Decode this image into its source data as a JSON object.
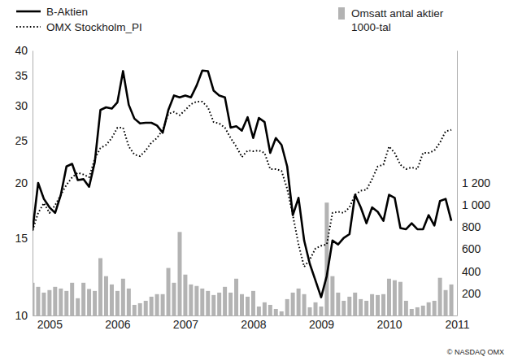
{
  "chart_data": {
    "type": "line",
    "log": "y",
    "x": [
      2004.75,
      2004.833,
      2004.917,
      2005,
      2005.083,
      2005.167,
      2005.25,
      2005.333,
      2005.417,
      2005.5,
      2005.583,
      2005.667,
      2005.75,
      2005.833,
      2005.917,
      2006,
      2006.083,
      2006.167,
      2006.25,
      2006.333,
      2006.417,
      2006.5,
      2006.583,
      2006.667,
      2006.75,
      2006.833,
      2006.917,
      2007,
      2007.083,
      2007.167,
      2007.25,
      2007.333,
      2007.417,
      2007.5,
      2007.583,
      2007.667,
      2007.75,
      2007.833,
      2007.917,
      2008,
      2008.083,
      2008.167,
      2008.25,
      2008.333,
      2008.417,
      2008.5,
      2008.583,
      2008.667,
      2008.75,
      2008.833,
      2008.917,
      2009,
      2009.083,
      2009.167,
      2009.25,
      2009.333,
      2009.417,
      2009.5,
      2009.583,
      2009.667,
      2009.75,
      2009.833,
      2009.917,
      2010,
      2010.083,
      2010.167,
      2010.25,
      2010.333,
      2010.417,
      2010.5,
      2010.583,
      2010.667,
      2010.75,
      2010.833,
      2010.917
    ],
    "xlim": [
      2004.75,
      2011
    ],
    "xticks": [
      2005,
      2006,
      2007,
      2008,
      2009,
      2010,
      2011
    ],
    "ylim": [
      10,
      40
    ],
    "yticks": [
      10,
      15,
      20,
      25,
      30,
      35,
      40
    ],
    "y2lim": [
      0,
      2400
    ],
    "y2ticks": [
      200,
      400,
      600,
      800,
      {
        "value": 1000,
        "label": "1 000"
      },
      {
        "value": 1200,
        "label": "1 200"
      }
    ],
    "series": [
      {
        "name": "B-Aktien",
        "type": "line",
        "color": "#000000",
        "line_style": "solid",
        "values": [
          15.6,
          20.0,
          18.4,
          17.6,
          17.1,
          18.8,
          21.8,
          22.1,
          20.3,
          20.4,
          19.6,
          22.3,
          29.3,
          29.7,
          29.5,
          30.5,
          35.9,
          30.1,
          28.0,
          27.3,
          27.4,
          27.4,
          27.0,
          26.0,
          29.3,
          31.6,
          31.3,
          31.6,
          31.3,
          33.3,
          36.0,
          35.9,
          32.4,
          31.6,
          31.3,
          26.7,
          26.9,
          26.3,
          28.2,
          25.3,
          28.1,
          27.5,
          23.4,
          25.3,
          24.4,
          21.8,
          16.9,
          18.5,
          14.8,
          13.1,
          12.0,
          11.0,
          12.3,
          14.8,
          14.5,
          15.0,
          15.3,
          18.8,
          17.6,
          16.2,
          17.6,
          17.2,
          16.4,
          18.8,
          18.5,
          15.8,
          15.7,
          16.2,
          15.7,
          15.7,
          16.9,
          16.0,
          18.2,
          18.4,
          16.4
        ]
      },
      {
        "name": "OMX Stockholm_PI",
        "type": "line",
        "color": "#000000",
        "line_style": "dotted",
        "values": [
          15.6,
          17.1,
          18.0,
          17.1,
          17.8,
          18.8,
          19.8,
          20.6,
          21.1,
          20.9,
          20.6,
          22.7,
          24.0,
          24.4,
          25.3,
          26.7,
          26.7,
          24.2,
          23.2,
          23.0,
          23.7,
          24.7,
          25.3,
          26.4,
          28.7,
          29.0,
          28.5,
          29.3,
          30.2,
          30.6,
          30.6,
          29.7,
          27.5,
          27.3,
          26.7,
          25.3,
          24.2,
          22.9,
          23.7,
          23.6,
          23.7,
          23.4,
          21.5,
          21.5,
          21.3,
          19.4,
          16.9,
          14.5,
          12.9,
          13.4,
          14.2,
          14.4,
          14.5,
          17.1,
          17.2,
          17.1,
          17.6,
          18.8,
          19.2,
          19.3,
          20.4,
          21.8,
          22.0,
          24.2,
          23.4,
          22.0,
          21.5,
          21.7,
          21.5,
          23.4,
          23.4,
          23.7,
          24.7,
          26.2,
          26.4
        ]
      },
      {
        "name": "Omsatt antal aktier\n1000-tal",
        "type": "bar",
        "color": "#b3b3b3",
        "axis": "y2",
        "values": [
          296,
          259,
          207,
          230,
          259,
          244,
          222,
          296,
          156,
          296,
          240,
          222,
          519,
          356,
          281,
          222,
          333,
          244,
          96,
          111,
          133,
          170,
          193,
          193,
          430,
          296,
          756,
          370,
          281,
          267,
          244,
          222,
          185,
          207,
          259,
          207,
          333,
          193,
          170,
          222,
          81,
          119,
          96,
          59,
          37,
          148,
          207,
          244,
          193,
          74,
          119,
          81,
          1022,
          356,
          207,
          133,
          170,
          207,
          148,
          133,
          193,
          185,
          193,
          333,
          319,
          304,
          133,
          59,
          74,
          89,
          119,
          133,
          341,
          230,
          281
        ]
      }
    ],
    "annotations": [
      "© NASDAQ OMX"
    ]
  }
}
